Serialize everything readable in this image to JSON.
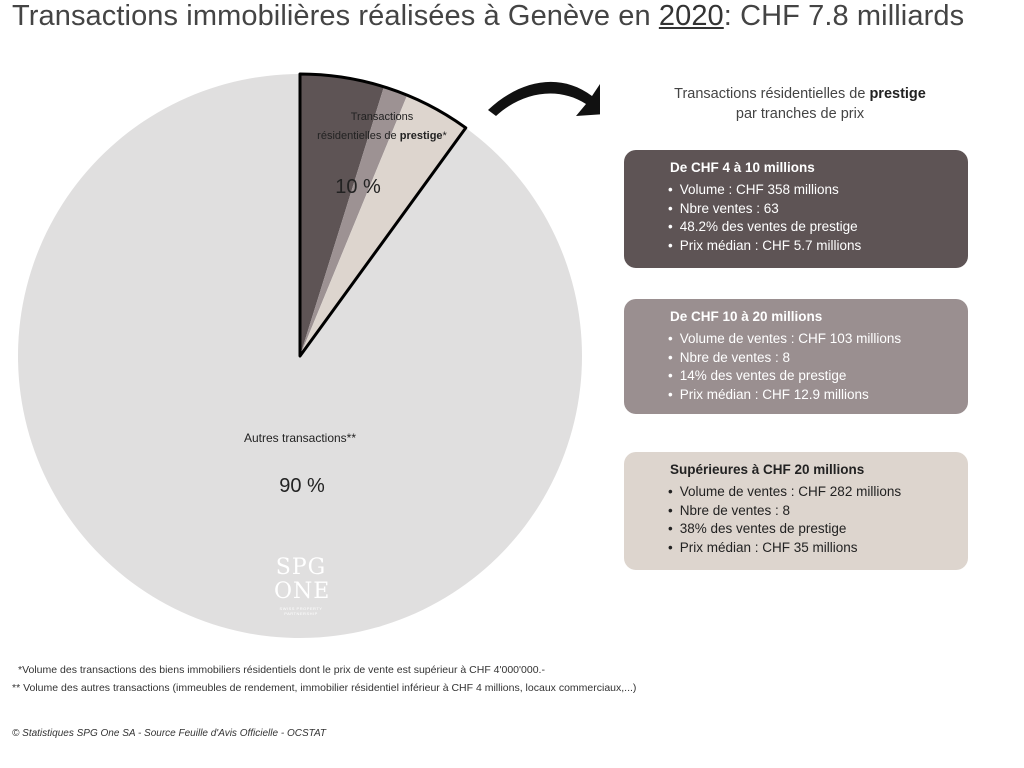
{
  "title": {
    "prefix": "Transactions immobilières réalisées à Genève en ",
    "year": "2020",
    "suffix": ": CHF 7.8 milliards"
  },
  "chart_data": {
    "type": "pie",
    "slices": [
      {
        "label_line1": "Transactions",
        "label_line2": "résidentielles de ",
        "label_bold": "prestige",
        "label_suffix": "*",
        "value": 10,
        "value_label": "10 %",
        "color": "#5e5455"
      },
      {
        "label": "Autres transactions**",
        "value": 90,
        "value_label": "90 %",
        "color": "#e0dfdf"
      }
    ],
    "prestige_breakdown_shares": [
      48.2,
      14,
      38
    ],
    "prestige_breakdown_colors": [
      "#5e5455",
      "#9d9293",
      "#ddd5ce"
    ]
  },
  "side": {
    "title_line1": "Transactions résidentielles de ",
    "title_bold": "prestige",
    "title_line2": "par tranches de prix"
  },
  "boxes": [
    {
      "title": "De CHF 4 à 10 millions",
      "bg": "#5e5455",
      "items": [
        "Volume : CHF 358 millions",
        "Nbre ventes : 63",
        "48.2% des ventes de prestige",
        "Prix médian : CHF 5.7 millions"
      ]
    },
    {
      "title": "De CHF 10 à 20 millions",
      "bg": "#9a8f90",
      "items": [
        "Volume de ventes : CHF 103 millions",
        "Nbre de ventes : 8",
        "14% des ventes de prestige",
        "Prix médian : CHF 12.9 millions"
      ]
    },
    {
      "title": "Supérieures à CHF 20 millions",
      "bg": "#ddd5ce",
      "items": [
        "Volume de ventes : CHF 282 millions",
        "Nbre de ventes : 8",
        "38% des ventes de prestige",
        "Prix médian : CHF 35 millions"
      ]
    }
  ],
  "logo": {
    "line1": "SPG",
    "line2": "ONE",
    "tagline": "SWISS PROPERTY PARTNERSHIP"
  },
  "footnotes": [
    "*Volume des transactions des biens immobiliers résidentiels dont le prix de vente est supérieur à CHF 4'000'000.-",
    "** Volume des autres transactions (immeubles de rendement,  immobilier résidentiel  inférieur à CHF 4 millions, locaux commerciaux,...)"
  ],
  "source": "© Statistiques SPG One SA - Source Feuille d'Avis Officielle - OCSTAT"
}
